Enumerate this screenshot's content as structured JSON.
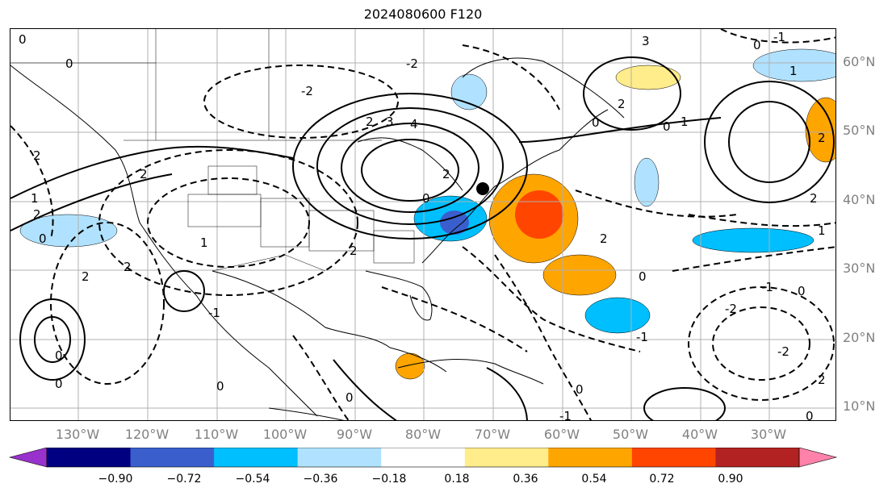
{
  "title": "2024080600 F120",
  "lat_labels": [
    "60°N",
    "50°N",
    "40°N",
    "30°N",
    "20°N",
    "10°N"
  ],
  "lon_labels": [
    "130°W",
    "120°W",
    "110°W",
    "100°W",
    "90°W",
    "80°W",
    "70°W",
    "60°W",
    "50°W",
    "40°W",
    "30°W"
  ],
  "colorbar": {
    "ticks": [
      "−0.90",
      "−0.72",
      "−0.54",
      "−0.36",
      "−0.18",
      "0.18",
      "0.36",
      "0.54",
      "0.72",
      "0.90"
    ],
    "colors": [
      "#9932cc",
      "#000080",
      "#3a5fcd",
      "#00bfff",
      "#b0e2ff",
      "#ffffff",
      "#ffec8b",
      "#ffa500",
      "#ff4500",
      "#b22222",
      "#ff82ab"
    ]
  },
  "contour_labels": [
    "0",
    "1",
    "2",
    "3",
    "4",
    "-1",
    "-2",
    "-3"
  ],
  "point_marker": "black-dot"
}
